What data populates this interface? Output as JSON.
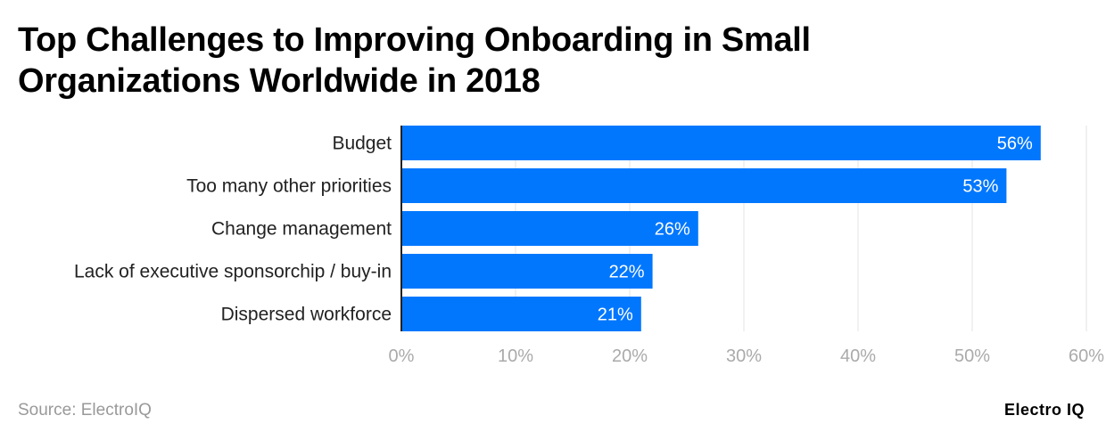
{
  "title": "Top Challenges to Improving Onboarding in Small Organizations Worldwide in 2018",
  "source": "Source: ElectroIQ",
  "logo": "Electro IQ",
  "chart_data": {
    "type": "bar",
    "orientation": "horizontal",
    "title": "Top Challenges to Improving Onboarding in Small Organizations Worldwide in 2018",
    "categories": [
      "Budget",
      "Too many other priorities",
      "Change management",
      "Lack of executive sponsorchip / buy-in",
      "Dispersed workforce"
    ],
    "values": [
      56,
      53,
      26,
      22,
      21
    ],
    "data_labels": [
      "56%",
      "53%",
      "26%",
      "22%",
      "21%"
    ],
    "xlim": [
      0,
      60
    ],
    "x_ticks": [
      0,
      10,
      20,
      30,
      40,
      50,
      60
    ],
    "x_tick_labels": [
      "0%",
      "10%",
      "20%",
      "30%",
      "40%",
      "50%",
      "60%"
    ],
    "grid": true,
    "bar_color": "#0177fe"
  }
}
